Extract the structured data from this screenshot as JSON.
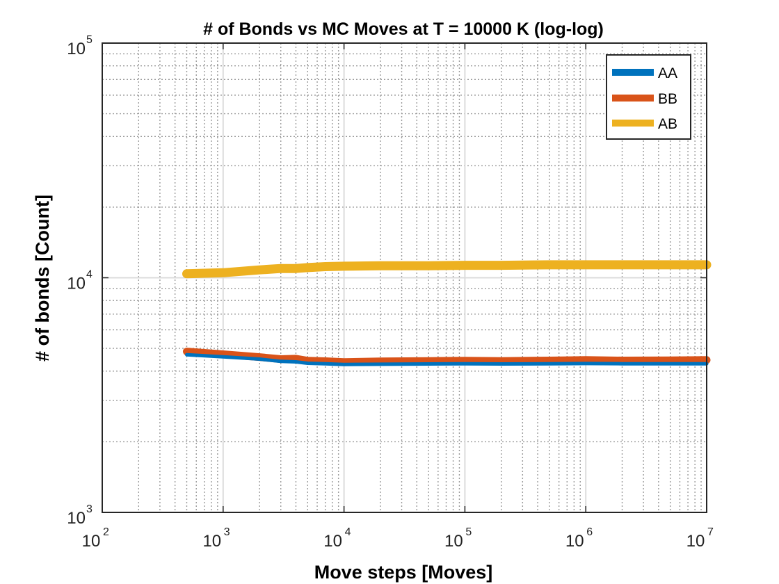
{
  "chart_data": {
    "type": "line",
    "title": "# of Bonds vs MC Moves at T = 10000 K (log-log)",
    "xlabel": "Move steps [Moves]",
    "ylabel": "# of bonds [Count]",
    "xscale": "log",
    "yscale": "log",
    "xlim": [
      100,
      10000000
    ],
    "ylim": [
      1000,
      100000
    ],
    "x_ticks": [
      {
        "base": "10",
        "exp": "2",
        "value": 100
      },
      {
        "base": "10",
        "exp": "3",
        "value": 1000
      },
      {
        "base": "10",
        "exp": "4",
        "value": 10000
      },
      {
        "base": "10",
        "exp": "5",
        "value": 100000
      },
      {
        "base": "10",
        "exp": "6",
        "value": 1000000
      },
      {
        "base": "10",
        "exp": "7",
        "value": 10000000
      }
    ],
    "y_ticks": [
      {
        "base": "10",
        "exp": "3",
        "value": 1000
      },
      {
        "base": "10",
        "exp": "4",
        "value": 10000
      },
      {
        "base": "10",
        "exp": "5",
        "value": 100000
      }
    ],
    "grid": true,
    "minor_grid": true,
    "legend_position": "top-right",
    "x": [
      500,
      1000,
      2000,
      3000,
      4000,
      5000,
      7000,
      10000,
      20000,
      50000,
      100000,
      200000,
      500000,
      1000000,
      2000000,
      5000000,
      10000000
    ],
    "series": [
      {
        "name": "AA",
        "color": "#0072BD",
        "values": [
          4700,
          4600,
          4500,
          4400,
          4380,
          4320,
          4300,
          4270,
          4280,
          4290,
          4300,
          4290,
          4300,
          4310,
          4300,
          4300,
          4300
        ]
      },
      {
        "name": "BB",
        "color": "#D95319",
        "values": [
          4850,
          4720,
          4590,
          4500,
          4520,
          4430,
          4410,
          4370,
          4400,
          4420,
          4430,
          4420,
          4440,
          4460,
          4440,
          4450,
          4460
        ]
      },
      {
        "name": "AB",
        "color": "#EDB120",
        "values": [
          10400,
          10500,
          10800,
          10950,
          10950,
          11050,
          11150,
          11200,
          11250,
          11250,
          11300,
          11300,
          11350,
          11350,
          11350,
          11350,
          11350
        ]
      }
    ]
  }
}
